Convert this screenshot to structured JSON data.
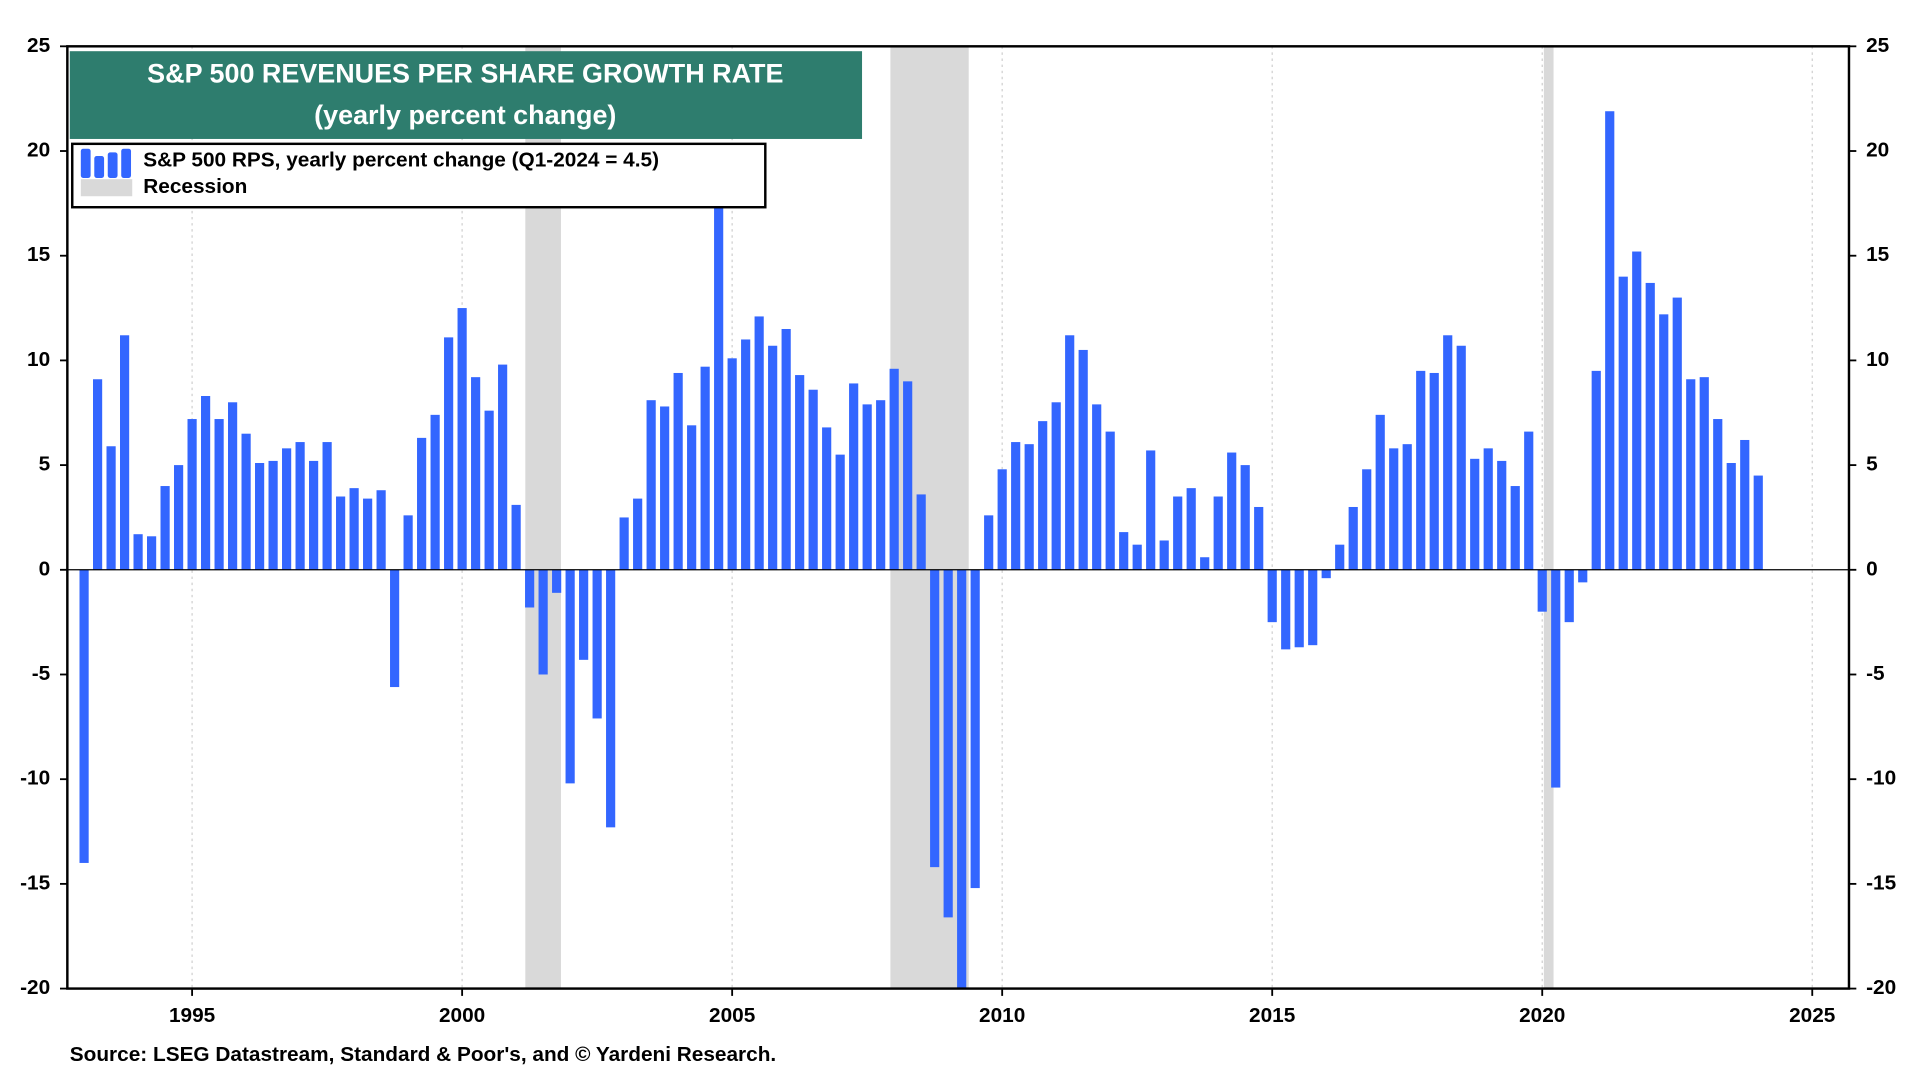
{
  "chart_data": {
    "type": "bar",
    "title": "S&P 500 REVENUES PER SHARE GROWTH RATE",
    "subtitle": "(yearly percent change)",
    "source": "Source: LSEG Datastream, Standard & Poor's, and © Yardeni Research.",
    "x": [
      1993,
      1993.25,
      1993.5,
      1993.75,
      1994,
      1994.25,
      1994.5,
      1994.75,
      1995,
      1995.25,
      1995.5,
      1995.75,
      1996,
      1996.25,
      1996.5,
      1996.75,
      1997,
      1997.25,
      1997.5,
      1997.75,
      1998,
      1998.25,
      1998.5,
      1998.75,
      1999,
      1999.25,
      1999.5,
      1999.75,
      2000,
      2000.25,
      2000.5,
      2000.75,
      2001,
      2001.25,
      2001.5,
      2001.75,
      2002,
      2002.25,
      2002.5,
      2002.75,
      2003,
      2003.25,
      2003.5,
      2003.75,
      2004,
      2004.25,
      2004.5,
      2004.75,
      2005,
      2005.25,
      2005.5,
      2005.75,
      2006,
      2006.25,
      2006.5,
      2006.75,
      2007,
      2007.25,
      2007.5,
      2007.75,
      2008,
      2008.25,
      2008.5,
      2008.75,
      2009,
      2009.25,
      2009.5,
      2009.75,
      2010,
      2010.25,
      2010.5,
      2010.75,
      2011,
      2011.25,
      2011.5,
      2011.75,
      2012,
      2012.25,
      2012.5,
      2012.75,
      2013,
      2013.25,
      2013.5,
      2013.75,
      2014,
      2014.25,
      2014.5,
      2014.75,
      2015,
      2015.25,
      2015.5,
      2015.75,
      2016,
      2016.25,
      2016.5,
      2016.75,
      2017,
      2017.25,
      2017.5,
      2017.75,
      2018,
      2018.25,
      2018.5,
      2018.75,
      2019,
      2019.25,
      2019.5,
      2019.75,
      2020,
      2020.25,
      2020.5,
      2020.75,
      2021,
      2021.25,
      2021.5,
      2021.75,
      2022,
      2022.25,
      2022.5,
      2022.75,
      2023,
      2023.25,
      2023.5,
      2023.75,
      2024
    ],
    "series": [
      {
        "name": "S&P 500 RPS, yearly percent change (Q1-2024 = 4.5)",
        "color": "#3366ff",
        "values": [
          -14.0,
          9.1,
          5.9,
          11.2,
          1.7,
          1.6,
          4.0,
          5.0,
          7.2,
          8.3,
          7.2,
          8.0,
          6.5,
          5.1,
          5.2,
          5.8,
          6.1,
          5.2,
          6.1,
          3.5,
          3.9,
          3.4,
          3.8,
          -5.6,
          2.6,
          6.3,
          7.4,
          11.1,
          12.5,
          9.2,
          7.6,
          9.8,
          3.1,
          -1.8,
          -5.0,
          -1.1,
          -10.2,
          -4.3,
          -7.1,
          -12.3,
          2.5,
          3.4,
          8.1,
          7.8,
          9.4,
          6.9,
          9.7,
          18.0,
          10.1,
          11.0,
          12.1,
          10.7,
          11.5,
          9.3,
          8.6,
          6.8,
          5.5,
          8.9,
          7.9,
          8.1,
          9.6,
          9.0,
          3.6,
          -14.2,
          -16.6,
          -21.0,
          -15.2,
          2.6,
          4.8,
          6.1,
          6.0,
          7.1,
          8.0,
          11.2,
          10.5,
          7.9,
          6.6,
          1.8,
          1.2,
          5.7,
          1.4,
          3.5,
          3.9,
          0.6,
          3.5,
          5.6,
          5.0,
          3.0,
          -2.5,
          -3.8,
          -3.7,
          -3.6,
          -0.4,
          1.2,
          3.0,
          4.8,
          7.4,
          5.8,
          6.0,
          9.5,
          9.4,
          11.2,
          10.7,
          5.3,
          5.8,
          5.2,
          4.0,
          6.6,
          -2.0,
          -10.4,
          -2.5,
          -0.6,
          9.5,
          21.9,
          14.0,
          15.2,
          13.7,
          12.2,
          13.0,
          9.1,
          9.2,
          7.2,
          5.1,
          6.2,
          4.5
        ]
      }
    ],
    "recession_label": "Recession",
    "recession_color": "#d9d9d9",
    "recessions": [
      [
        2001.17,
        2001.83
      ],
      [
        2007.93,
        2009.38
      ],
      [
        2020.03,
        2020.21
      ]
    ],
    "xlim": [
      1992.69,
      2025.68
    ],
    "xticks": [
      1995,
      2000,
      2005,
      2010,
      2015,
      2020,
      2025
    ],
    "ylim": [
      -20,
      25
    ],
    "yticks": [
      -20,
      -15,
      -10,
      -5,
      0,
      5,
      10,
      15,
      20,
      25
    ],
    "y2lim": [
      -20,
      25
    ],
    "y2ticks": [
      -20,
      -15,
      -10,
      -5,
      0,
      5,
      10,
      15,
      20,
      25
    ],
    "grid": true,
    "legend": "upper left"
  }
}
